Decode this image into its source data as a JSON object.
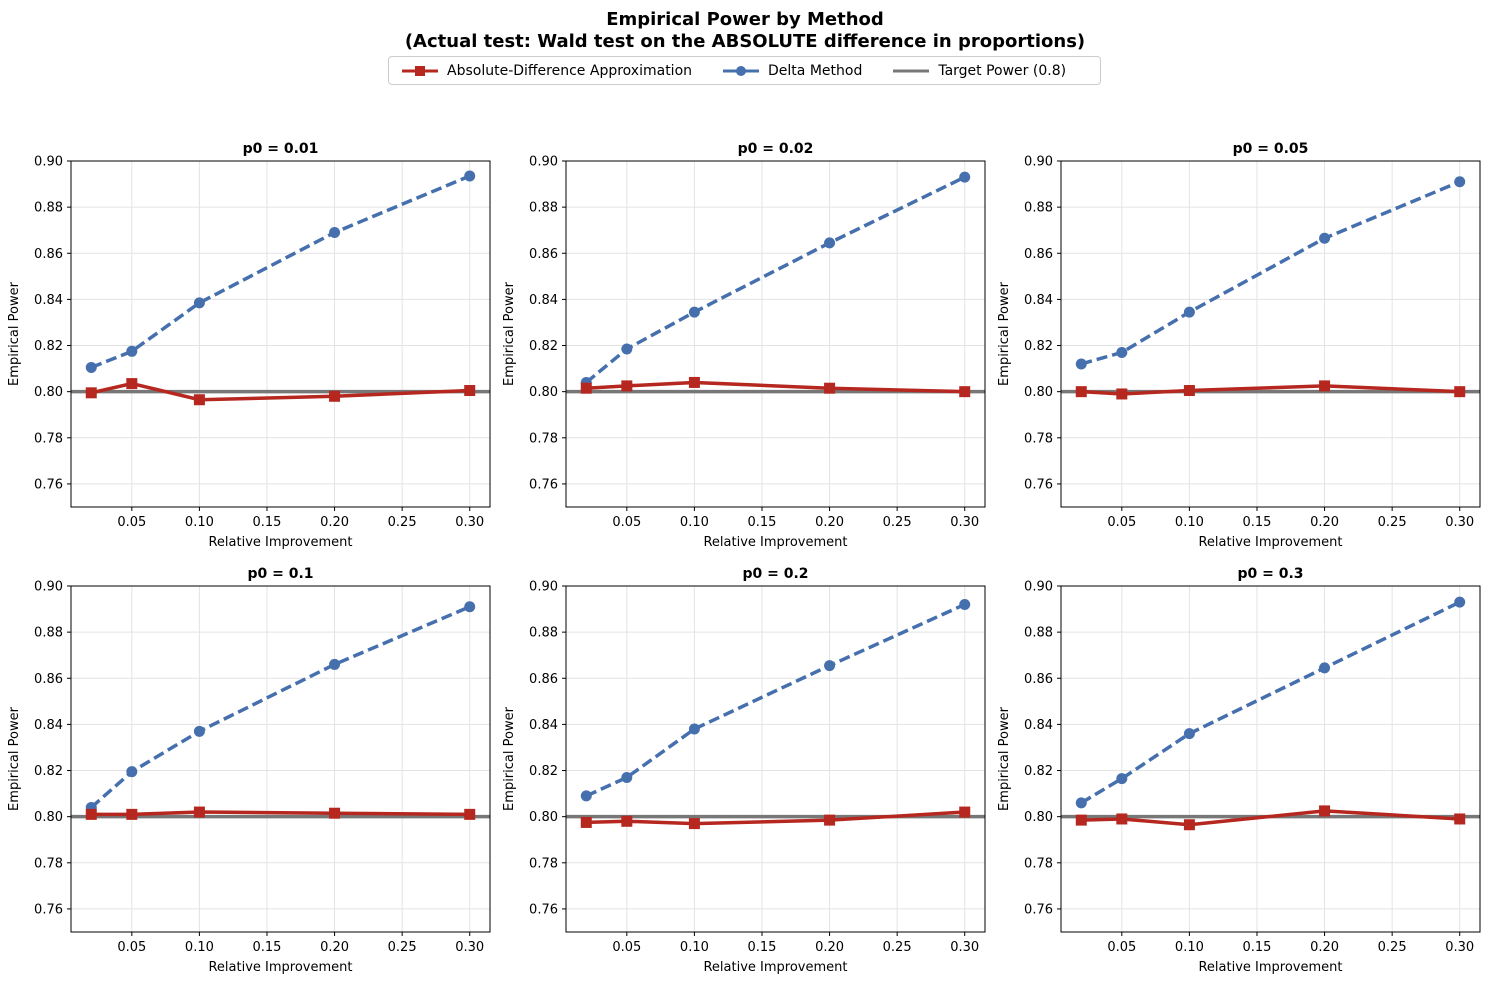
{
  "chart_data": {
    "type": "line",
    "title": "Empirical Power by Method",
    "subtitle": "(Actual test: Wald test on the ABSOLUTE difference in proportions)",
    "legend": [
      {
        "name": "Absolute-Difference Approximation",
        "color": "#b5271f",
        "marker": "square",
        "style": "solid"
      },
      {
        "name": "Delta Method",
        "color": "#4670ad",
        "marker": "circle",
        "style": "dashed"
      },
      {
        "name": "Target Power (0.8)",
        "color": "#777777",
        "marker": "none",
        "style": "solid"
      }
    ],
    "xlabel": "Relative Improvement",
    "ylabel": "Empirical Power",
    "xlim": [
      0.005,
      0.315
    ],
    "ylim": [
      0.75,
      0.9
    ],
    "xticks": [
      0.05,
      0.1,
      0.15,
      0.2,
      0.25,
      0.3
    ],
    "xtick_labels": [
      "0.05",
      "0.10",
      "0.15",
      "0.20",
      "0.25",
      "0.30"
    ],
    "yticks": [
      0.76,
      0.78,
      0.8,
      0.82,
      0.84,
      0.86,
      0.88,
      0.9
    ],
    "ytick_labels": [
      "0.76",
      "0.78",
      "0.80",
      "0.82",
      "0.84",
      "0.86",
      "0.88",
      "0.90"
    ],
    "target": 0.8,
    "x": [
      0.02,
      0.05,
      0.1,
      0.2,
      0.3
    ],
    "panels": [
      {
        "title": "p0 = 0.01",
        "series": [
          {
            "name": "Absolute-Difference Approximation",
            "values": [
              0.7995,
              0.8035,
              0.7965,
              0.798,
              0.8005
            ]
          },
          {
            "name": "Delta Method",
            "values": [
              0.8105,
              0.8175,
              0.8385,
              0.869,
              0.8935
            ]
          }
        ]
      },
      {
        "title": "p0 = 0.02",
        "series": [
          {
            "name": "Absolute-Difference Approximation",
            "values": [
              0.8015,
              0.8025,
              0.804,
              0.8015,
              0.8
            ]
          },
          {
            "name": "Delta Method",
            "values": [
              0.804,
              0.8185,
              0.8345,
              0.8645,
              0.893
            ]
          }
        ]
      },
      {
        "title": "p0 = 0.05",
        "series": [
          {
            "name": "Absolute-Difference Approximation",
            "values": [
              0.8,
              0.799,
              0.8005,
              0.8025,
              0.8
            ]
          },
          {
            "name": "Delta Method",
            "values": [
              0.812,
              0.817,
              0.8345,
              0.8665,
              0.891
            ]
          }
        ]
      },
      {
        "title": "p0 = 0.1",
        "series": [
          {
            "name": "Absolute-Difference Approximation",
            "values": [
              0.801,
              0.801,
              0.802,
              0.8015,
              0.801
            ]
          },
          {
            "name": "Delta Method",
            "values": [
              0.804,
              0.8195,
              0.837,
              0.866,
              0.891
            ]
          }
        ]
      },
      {
        "title": "p0 = 0.2",
        "series": [
          {
            "name": "Absolute-Difference Approximation",
            "values": [
              0.7975,
              0.798,
              0.797,
              0.7985,
              0.802
            ]
          },
          {
            "name": "Delta Method",
            "values": [
              0.809,
              0.817,
              0.838,
              0.8655,
              0.892
            ]
          }
        ]
      },
      {
        "title": "p0 = 0.3",
        "series": [
          {
            "name": "Absolute-Difference Approximation",
            "values": [
              0.7985,
              0.799,
              0.7965,
              0.8025,
              0.799
            ]
          },
          {
            "name": "Delta Method",
            "values": [
              0.806,
              0.8165,
              0.836,
              0.8645,
              0.893
            ]
          }
        ]
      }
    ]
  }
}
